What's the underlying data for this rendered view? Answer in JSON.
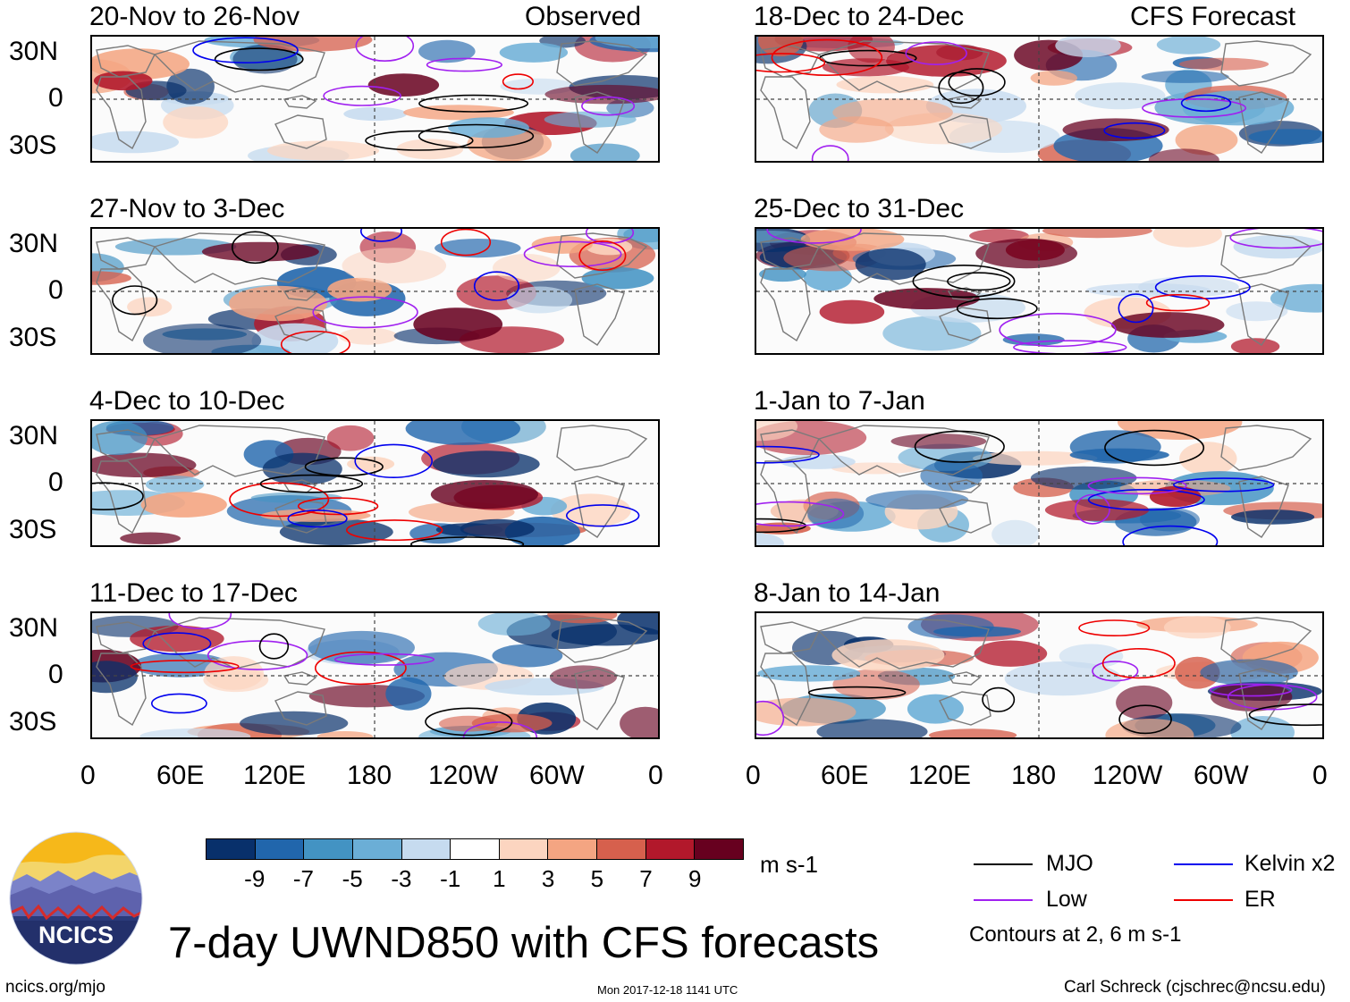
{
  "panels": [
    {
      "title": "20-Nov to 26-Nov",
      "tag": "Observed"
    },
    {
      "title": "27-Nov to 3-Dec",
      "tag": ""
    },
    {
      "title": "4-Dec to 10-Dec",
      "tag": ""
    },
    {
      "title": "11-Dec to 17-Dec",
      "tag": ""
    },
    {
      "title": "18-Dec to 24-Dec",
      "tag": "CFS Forecast"
    },
    {
      "title": "25-Dec to 31-Dec",
      "tag": ""
    },
    {
      "title": "1-Jan to 7-Jan",
      "tag": ""
    },
    {
      "title": "8-Jan to 14-Jan",
      "tag": ""
    }
  ],
  "lat_labels": [
    "30N",
    "0",
    "30S"
  ],
  "lon_labels": [
    "0",
    "60E",
    "120E",
    "180",
    "120W",
    "60W",
    "0"
  ],
  "colorbar": {
    "colors": [
      "#08306b",
      "#2166ac",
      "#4393c3",
      "#6baed6",
      "#c6dbef",
      "#ffffff",
      "#fcd5c0",
      "#f4a582",
      "#d6604d",
      "#b2182b",
      "#67001f"
    ],
    "labels": [
      "-9",
      "-7",
      "-5",
      "-3",
      "-1",
      "1",
      "3",
      "5",
      "7",
      "9"
    ],
    "units": "m s-1"
  },
  "legend": {
    "items": [
      {
        "name": "MJO",
        "color": "#000000"
      },
      {
        "name": "Kelvin x2",
        "color": "#0000ee"
      },
      {
        "name": "Low",
        "color": "#a020f0"
      },
      {
        "name": "ER",
        "color": "#ee0000"
      }
    ],
    "note": "Contours at 2, 6 m s-1"
  },
  "logo_text": "NCICS",
  "main_title": "7-day UWND850 with CFS forecasts",
  "footer": {
    "left": "ncics.org/mjo",
    "center": "Mon 2017-12-18 1141 UTC",
    "right": "Carl Schreck (cjschrec@ncsu.edu)"
  }
}
